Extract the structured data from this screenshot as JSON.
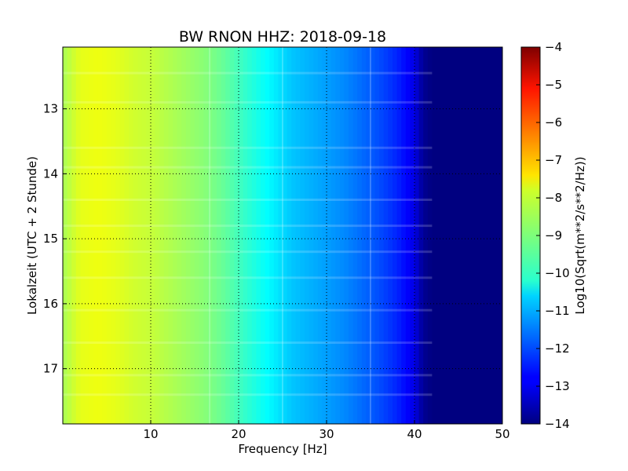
{
  "chart_data": {
    "type": "heatmap",
    "title": "BW RNON HHZ: 2018-09-18",
    "xlabel": "Frequency [Hz]",
    "ylabel": "Lokalzeit (UTC + 2 Stunde)",
    "xlim": [
      0,
      50
    ],
    "ylim": [
      12.05,
      17.85
    ],
    "y_inverted": true,
    "x_ticks": [
      10,
      20,
      30,
      40,
      50
    ],
    "y_ticks": [
      13,
      14,
      15,
      16,
      17
    ],
    "grid": true,
    "colormap": "jet",
    "colorbar": {
      "label": "Log10(Sqrt(m**2/s**2/Hz))",
      "range": [
        -14,
        -4
      ],
      "ticks": [
        -4,
        -5,
        -6,
        -7,
        -8,
        -9,
        -10,
        -11,
        -12,
        -13,
        -14
      ]
    },
    "spectrum_profile": {
      "frequency_hz": [
        0,
        2,
        4,
        6,
        8,
        10,
        12,
        14,
        16,
        18,
        20,
        22,
        24,
        26,
        28,
        30,
        32,
        34,
        36,
        38,
        40,
        41,
        42,
        44,
        46,
        48,
        50
      ],
      "value": [
        -8.6,
        -8.0,
        -7.9,
        -8.0,
        -8.2,
        -8.3,
        -8.5,
        -8.7,
        -8.9,
        -9.2,
        -9.6,
        -10.0,
        -10.4,
        -10.8,
        -11.0,
        -11.2,
        -11.4,
        -11.7,
        -12.0,
        -12.4,
        -13.0,
        -13.8,
        -14.0,
        -14.0,
        -14.0,
        -14.0,
        -14.0
      ]
    },
    "features": {
      "vertical_lines_hz": [
        16.7,
        25.0,
        35.0
      ],
      "horizontal_band_times": [
        12.45,
        12.9,
        13.6,
        13.9,
        14.4,
        14.8,
        15.2,
        15.6,
        16.1,
        16.6,
        17.1,
        17.4
      ]
    }
  }
}
